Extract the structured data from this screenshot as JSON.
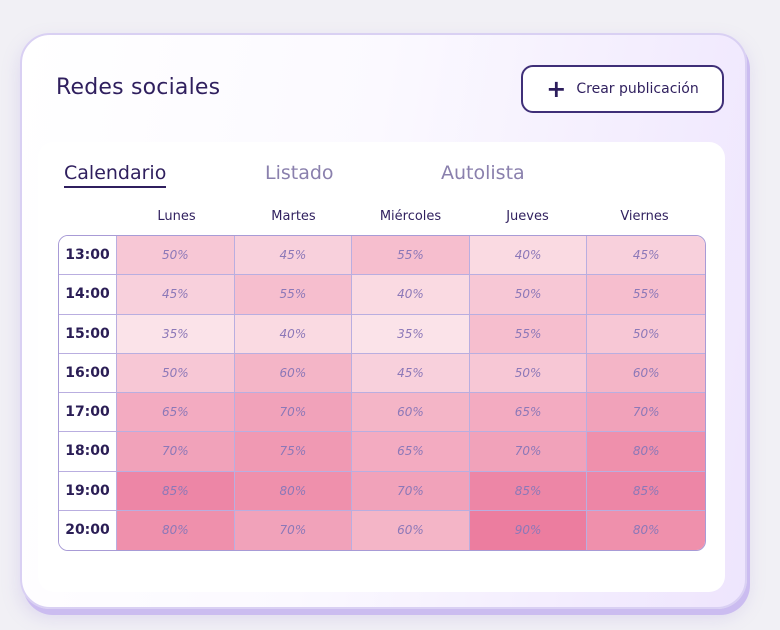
{
  "header": {
    "title": "Redes sociales",
    "create_button_label": "Crear publicación",
    "create_icon": "+"
  },
  "tabs": [
    {
      "label": "Calendario",
      "active": true
    },
    {
      "label": "Listado",
      "active": false
    },
    {
      "label": "Autolista",
      "active": false
    }
  ],
  "schedule": {
    "days": [
      "Lunes",
      "Martes",
      "Miércoles",
      "Jueves",
      "Viernes"
    ],
    "rows": [
      {
        "time": "13:00",
        "values": [
          "50%",
          "45%",
          "55%",
          "40%",
          "45%"
        ]
      },
      {
        "time": "14:00",
        "values": [
          "45%",
          "55%",
          "40%",
          "50%",
          "55%"
        ]
      },
      {
        "time": "15:00",
        "values": [
          "35%",
          "40%",
          "35%",
          "55%",
          "50%"
        ]
      },
      {
        "time": "16:00",
        "values": [
          "50%",
          "60%",
          "45%",
          "50%",
          "60%"
        ]
      },
      {
        "time": "17:00",
        "values": [
          "65%",
          "70%",
          "60%",
          "65%",
          "70%"
        ]
      },
      {
        "time": "18:00",
        "values": [
          "70%",
          "75%",
          "65%",
          "70%",
          "80%"
        ]
      },
      {
        "time": "19:00",
        "values": [
          "85%",
          "80%",
          "70%",
          "85%",
          "85%"
        ]
      },
      {
        "time": "20:00",
        "values": [
          "80%",
          "70%",
          "60%",
          "90%",
          "80%"
        ]
      }
    ]
  },
  "colors": {
    "accent": "#2f1f5e",
    "heat_low": "#fbe3e9",
    "heat_high": "#ec7d9f"
  }
}
